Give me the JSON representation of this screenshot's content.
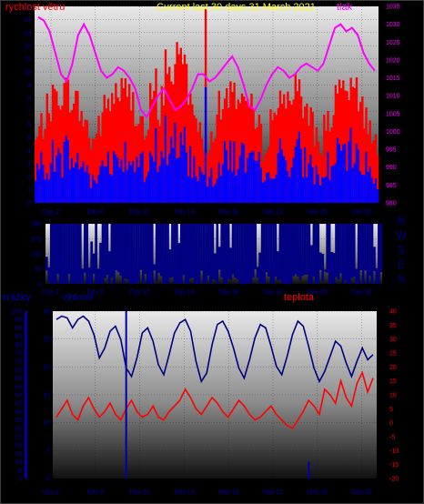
{
  "colors": {
    "wind": "#ff0000",
    "gust": "#0000ff",
    "pressure": "#ff00ff",
    "direction": "#000080",
    "humidity": "#000080",
    "temperature": "#ff0000",
    "rain": "#0000aa",
    "left_axis": "#0000aa",
    "right_axis_top": "#ff00ff",
    "right_axis_bottom": "#ff0000",
    "title": "#ffff00"
  },
  "chart_data": [
    {
      "id": "wind_pressure",
      "type": "area",
      "title": "Current last 30 days 31 March 2021",
      "left_label": "rychlost větru",
      "right_label": "tlak",
      "y_left": [
        0,
        1,
        2,
        3,
        4,
        5,
        6,
        7,
        8,
        9,
        10,
        11,
        12,
        13,
        14,
        15
      ],
      "y_left_ticks": [
        "0",
        "1",
        "2",
        "3",
        "4",
        "5",
        "6",
        "7",
        "8",
        "9",
        "10",
        "11",
        "12",
        "13",
        "14",
        "15"
      ],
      "y_right": [
        980,
        1035
      ],
      "y_right_ticks": [
        "980",
        "985",
        "990",
        "995",
        "1000",
        "1005",
        "1010",
        "1015",
        "1020",
        "1025",
        "1030",
        "1035"
      ],
      "x_ticks": [
        "Day 2",
        "Day 6",
        "Day 10",
        "Day 14",
        "Day 18",
        "Day 22",
        "Day 26",
        "Day 30"
      ],
      "series": [
        {
          "name": "rychlost větru",
          "kind": "bar"
        },
        {
          "kind": "bar"
        },
        {
          "name": "tlak",
          "kind": "line",
          "values": [
            1032,
            1031,
            1028,
            1022,
            1016,
            1014,
            1019,
            1027,
            1030,
            1027,
            1022,
            1017,
            1015,
            1016,
            1018,
            1017,
            1015,
            1012,
            1006,
            1004,
            1007,
            1010,
            1012,
            1009,
            1006,
            1007,
            1009,
            1012,
            1016,
            1016,
            1014,
            1015,
            1017,
            1019,
            1021,
            1018,
            1013,
            1007,
            1006,
            1009,
            1013,
            1016,
            1018,
            1017,
            1015,
            1016,
            1018,
            1019,
            1018,
            1017,
            1019,
            1024,
            1029,
            1030,
            1028,
            1029,
            1027,
            1022,
            1019,
            1017
          ]
        }
      ]
    },
    {
      "id": "wind_direction",
      "type": "area",
      "y": [
        0,
        360
      ],
      "y_ticks": [
        "0",
        "30",
        "60",
        "90",
        "120",
        "150",
        "180",
        "210",
        "240",
        "270",
        "300",
        "330",
        "360"
      ],
      "x_ticks": [
        "Day 2",
        "Day 6",
        "Day 10",
        "Day 14",
        "Day 18",
        "Day 22",
        "Day 26",
        "Day 30"
      ],
      "compass": [
        "N",
        "W",
        "S",
        "E",
        "N"
      ]
    },
    {
      "id": "humidity_temp_rain",
      "type": "line",
      "left_label": "srážky",
      "mid_label": "vlhkost",
      "right_label": "teplota",
      "y_left": [
        0,
        100
      ],
      "y_left_ticks": [
        "0",
        "5",
        "10",
        "15",
        "20",
        "25",
        "30",
        "35",
        "40",
        "45",
        "50",
        "55",
        "60",
        "65",
        "70",
        "75",
        "80",
        "85",
        "90",
        "95",
        "100"
      ],
      "y_mid_ticks": [
        "0",
        "5",
        "10",
        "15",
        "20",
        "25",
        "30"
      ],
      "y_right": [
        -20,
        40
      ],
      "y_right_ticks": [
        "-20",
        "-15",
        "-10",
        "-5",
        "0",
        "5",
        "10",
        "15",
        "20",
        "25",
        "30",
        "35",
        "40"
      ],
      "x_ticks": [
        "Day 2",
        "Day 6",
        "Day 10",
        "Day 14",
        "Day 18",
        "Day 22",
        "Day 26",
        "Day 30"
      ],
      "series": [
        {
          "name": "vlhkost",
          "values": [
            95,
            97,
            96,
            90,
            95,
            97,
            94,
            86,
            72,
            78,
            88,
            91,
            83,
            66,
            61,
            72,
            87,
            90,
            82,
            68,
            62,
            74,
            87,
            93,
            95,
            88,
            70,
            58,
            63,
            80,
            92,
            94,
            88,
            78,
            66,
            60,
            71,
            84,
            92,
            90,
            79,
            67,
            62,
            73,
            86,
            94,
            91,
            79,
            66,
            58,
            64,
            73,
            82,
            79,
            69,
            61,
            70,
            78,
            71,
            74
          ]
        },
        {
          "name": "teplota",
          "values": [
            2,
            5,
            8,
            3,
            1,
            6,
            9,
            5,
            2,
            4,
            7,
            3,
            1,
            5,
            8,
            4,
            2,
            3,
            6,
            2,
            1,
            4,
            6,
            8,
            12,
            9,
            5,
            3,
            6,
            9,
            7,
            4,
            2,
            5,
            8,
            6,
            3,
            1,
            2,
            4,
            6,
            3,
            1,
            -1,
            -2,
            1,
            4,
            8,
            6,
            3,
            12,
            10,
            7,
            15,
            9,
            6,
            14,
            18,
            11,
            16
          ]
        },
        {
          "name": "srážky",
          "values": [
            0,
            0,
            0,
            0,
            0,
            0,
            0,
            0,
            0,
            0,
            0,
            0,
            0,
            30,
            0,
            0,
            0,
            0,
            0,
            0,
            0,
            0,
            0,
            0,
            0,
            0,
            0,
            0,
            0,
            0,
            0,
            0,
            0,
            0,
            0,
            0,
            0,
            0,
            0,
            0,
            0,
            0,
            0,
            0,
            0,
            0,
            0,
            3,
            0,
            0,
            0,
            0,
            0,
            0,
            0,
            0,
            0,
            0,
            0,
            0
          ]
        }
      ]
    }
  ]
}
